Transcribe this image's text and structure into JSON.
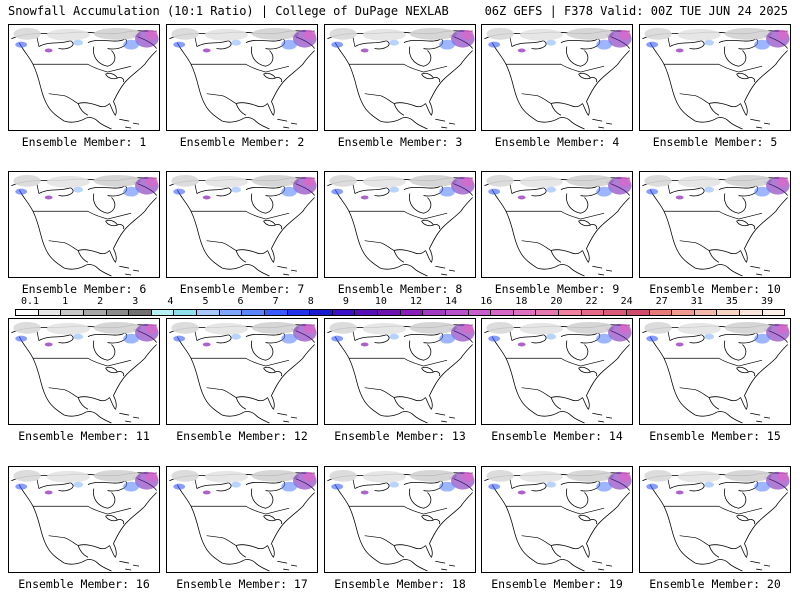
{
  "header": {
    "left": "Snowfall Accumulation (10:1 Ratio) | College of DuPage NEXLAB",
    "right": "06Z GEFS | F378 Valid: 00Z TUE JUN 24 2025"
  },
  "panel_caption_prefix": "Ensemble Member: ",
  "members": [
    "1",
    "2",
    "3",
    "4",
    "5",
    "6",
    "7",
    "8",
    "9",
    "10",
    "11",
    "12",
    "13",
    "14",
    "15",
    "16",
    "17",
    "18",
    "19",
    "20"
  ],
  "colorbar": {
    "labels": [
      "0.1",
      "1",
      "2",
      "3",
      "4",
      "5",
      "6",
      "7",
      "8",
      "9",
      "10",
      "12",
      "14",
      "16",
      "18",
      "20",
      "22",
      "24",
      "27",
      "31",
      "35",
      "39"
    ],
    "colors": [
      "#ffffff",
      "#e6e6e6",
      "#c8c8c8",
      "#a8a8a8",
      "#8c8c8c",
      "#737373",
      "#b7f0f4",
      "#8ee0ea",
      "#a6c8ff",
      "#7fa7ff",
      "#5b86ff",
      "#3a5cff",
      "#2233ee",
      "#1a1ad0",
      "#3b10c8",
      "#5810b8",
      "#6e12b0",
      "#8a1eb8",
      "#a23ac4",
      "#b850cc",
      "#c85ecc",
      "#d868c8",
      "#e070c0",
      "#e878b0",
      "#ee82a0",
      "#e66a8a",
      "#dc5a78",
      "#d04c6c",
      "#e67a7a",
      "#f09a90",
      "#f4b8a8",
      "#f8d4c4",
      "#fae6da",
      "#fcf0e8"
    ]
  }
}
